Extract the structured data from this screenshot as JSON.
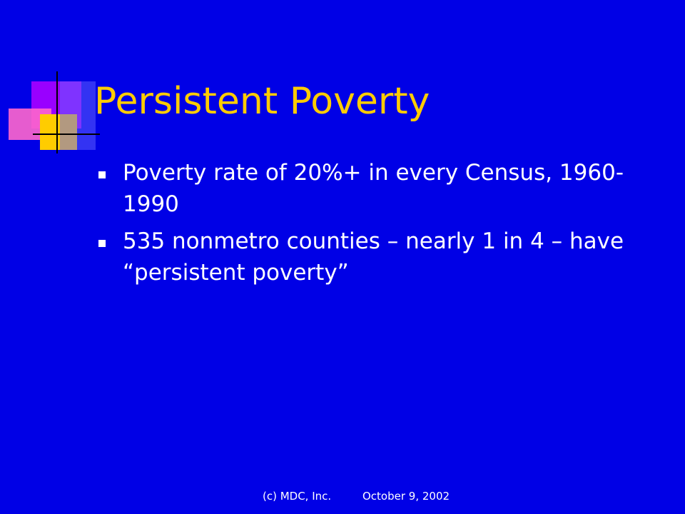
{
  "title": "Persistent Poverty",
  "bullets": [
    "Poverty rate of 20%+ in every Census, 1960-1990",
    "535 nonmetro counties – nearly 1 in 4 – have “persistent poverty”"
  ],
  "footer": {
    "copyright": "(c) MDC, Inc.",
    "date": "October 9, 2002"
  }
}
